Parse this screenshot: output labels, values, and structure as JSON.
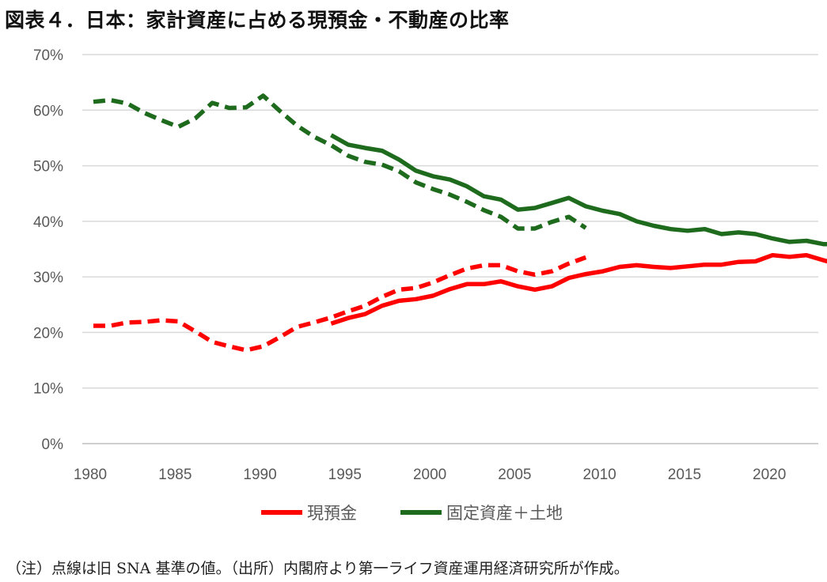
{
  "title": "図表４．日本：家計資産に占める現預金・不動産の比率",
  "note": "（注）点線は旧 SNA 基準の値。（出所）内閣府より第一ライフ資産運用経済研究所が作成。",
  "chart_data": {
    "type": "line",
    "title": "図表４．日本：家計資産に占める現預金・不動産の比率",
    "xlim": [
      1980,
      2024
    ],
    "ylim": [
      0,
      70
    ],
    "x_ticks": [
      1980,
      1985,
      1990,
      1995,
      2000,
      2005,
      2010,
      2015,
      2020
    ],
    "y_ticks": [
      {
        "v": 0,
        "label": "0%"
      },
      {
        "v": 10,
        "label": "10%"
      },
      {
        "v": 20,
        "label": "20%"
      },
      {
        "v": 30,
        "label": "30%"
      },
      {
        "v": 40,
        "label": "40%"
      },
      {
        "v": 50,
        "label": "50%"
      },
      {
        "v": 60,
        "label": "60%"
      },
      {
        "v": 70,
        "label": "70%"
      }
    ],
    "grid": true,
    "legend_position": "bottom",
    "legend": [
      {
        "label": "現預金",
        "color": "#ff0000"
      },
      {
        "label": "固定資産＋土地",
        "color": "#1e6b1e"
      }
    ],
    "series": [
      {
        "name": "現預金",
        "color": "#ff0000",
        "style": "dashed",
        "x": [
          1980,
          1981,
          1982,
          1983,
          1984,
          1985,
          1986,
          1987,
          1988,
          1989,
          1990,
          1991,
          1992,
          1993,
          1994,
          1995,
          1996,
          1997,
          1998,
          1999,
          2000,
          2001,
          2002,
          2003,
          2004,
          2005,
          2006,
          2007,
          2008,
          2009
        ],
        "y": [
          21.2,
          21.2,
          21.8,
          21.9,
          22.2,
          22.0,
          20.2,
          18.3,
          17.5,
          16.8,
          17.5,
          19.2,
          21.0,
          21.8,
          22.7,
          23.8,
          24.8,
          26.4,
          27.7,
          28.0,
          29.0,
          30.3,
          31.5,
          32.1,
          32.1,
          31.0,
          30.4,
          31.0,
          32.4,
          33.5
        ]
      },
      {
        "name": "固定資産＋土地",
        "color": "#1e6b1e",
        "style": "dashed",
        "x": [
          1980,
          1981,
          1982,
          1983,
          1984,
          1985,
          1986,
          1987,
          1988,
          1989,
          1990,
          1991,
          1992,
          1993,
          1994,
          1995,
          1996,
          1997,
          1998,
          1999,
          2000,
          2001,
          2002,
          2003,
          2004,
          2005,
          2006,
          2007,
          2008,
          2009
        ],
        "y": [
          61.5,
          61.8,
          61.2,
          59.5,
          58.2,
          57.0,
          58.5,
          61.3,
          60.4,
          60.5,
          62.6,
          59.8,
          57.2,
          55.2,
          53.7,
          51.8,
          50.7,
          50.2,
          49.0,
          47.0,
          45.8,
          44.8,
          43.5,
          42.0,
          40.8,
          38.7,
          38.7,
          39.9,
          40.8,
          38.8
        ]
      },
      {
        "name": "現預金",
        "color": "#ff0000",
        "style": "solid",
        "x": [
          1994,
          1995,
          1996,
          1997,
          1998,
          1999,
          2000,
          2001,
          2002,
          2003,
          2004,
          2005,
          2006,
          2007,
          2008,
          2009,
          2010,
          2011,
          2012,
          2013,
          2014,
          2015,
          2016,
          2017,
          2018,
          2019,
          2020,
          2021,
          2022,
          2023,
          2024
        ],
        "y": [
          21.6,
          22.6,
          23.3,
          24.8,
          25.7,
          26.0,
          26.6,
          27.8,
          28.7,
          28.7,
          29.2,
          28.3,
          27.7,
          28.3,
          29.8,
          30.5,
          31.0,
          31.8,
          32.1,
          31.8,
          31.6,
          31.9,
          32.2,
          32.2,
          32.7,
          32.8,
          33.9,
          33.6,
          33.9,
          33.0,
          32.1
        ]
      },
      {
        "name": "固定資産＋土地",
        "color": "#1e6b1e",
        "style": "solid",
        "x": [
          1994,
          1995,
          1996,
          1997,
          1998,
          1999,
          2000,
          2001,
          2002,
          2003,
          2004,
          2005,
          2006,
          2007,
          2008,
          2009,
          2010,
          2011,
          2012,
          2013,
          2014,
          2015,
          2016,
          2017,
          2018,
          2019,
          2020,
          2021,
          2022,
          2023,
          2024
        ],
        "y": [
          55.5,
          53.8,
          53.2,
          52.7,
          51.1,
          49.1,
          48.1,
          47.5,
          46.3,
          44.5,
          43.9,
          42.1,
          42.4,
          43.3,
          44.2,
          42.7,
          41.9,
          41.3,
          40.0,
          39.2,
          38.6,
          38.3,
          38.6,
          37.7,
          38.0,
          37.7,
          36.9,
          36.3,
          36.5,
          35.9,
          35.9
        ]
      }
    ]
  }
}
